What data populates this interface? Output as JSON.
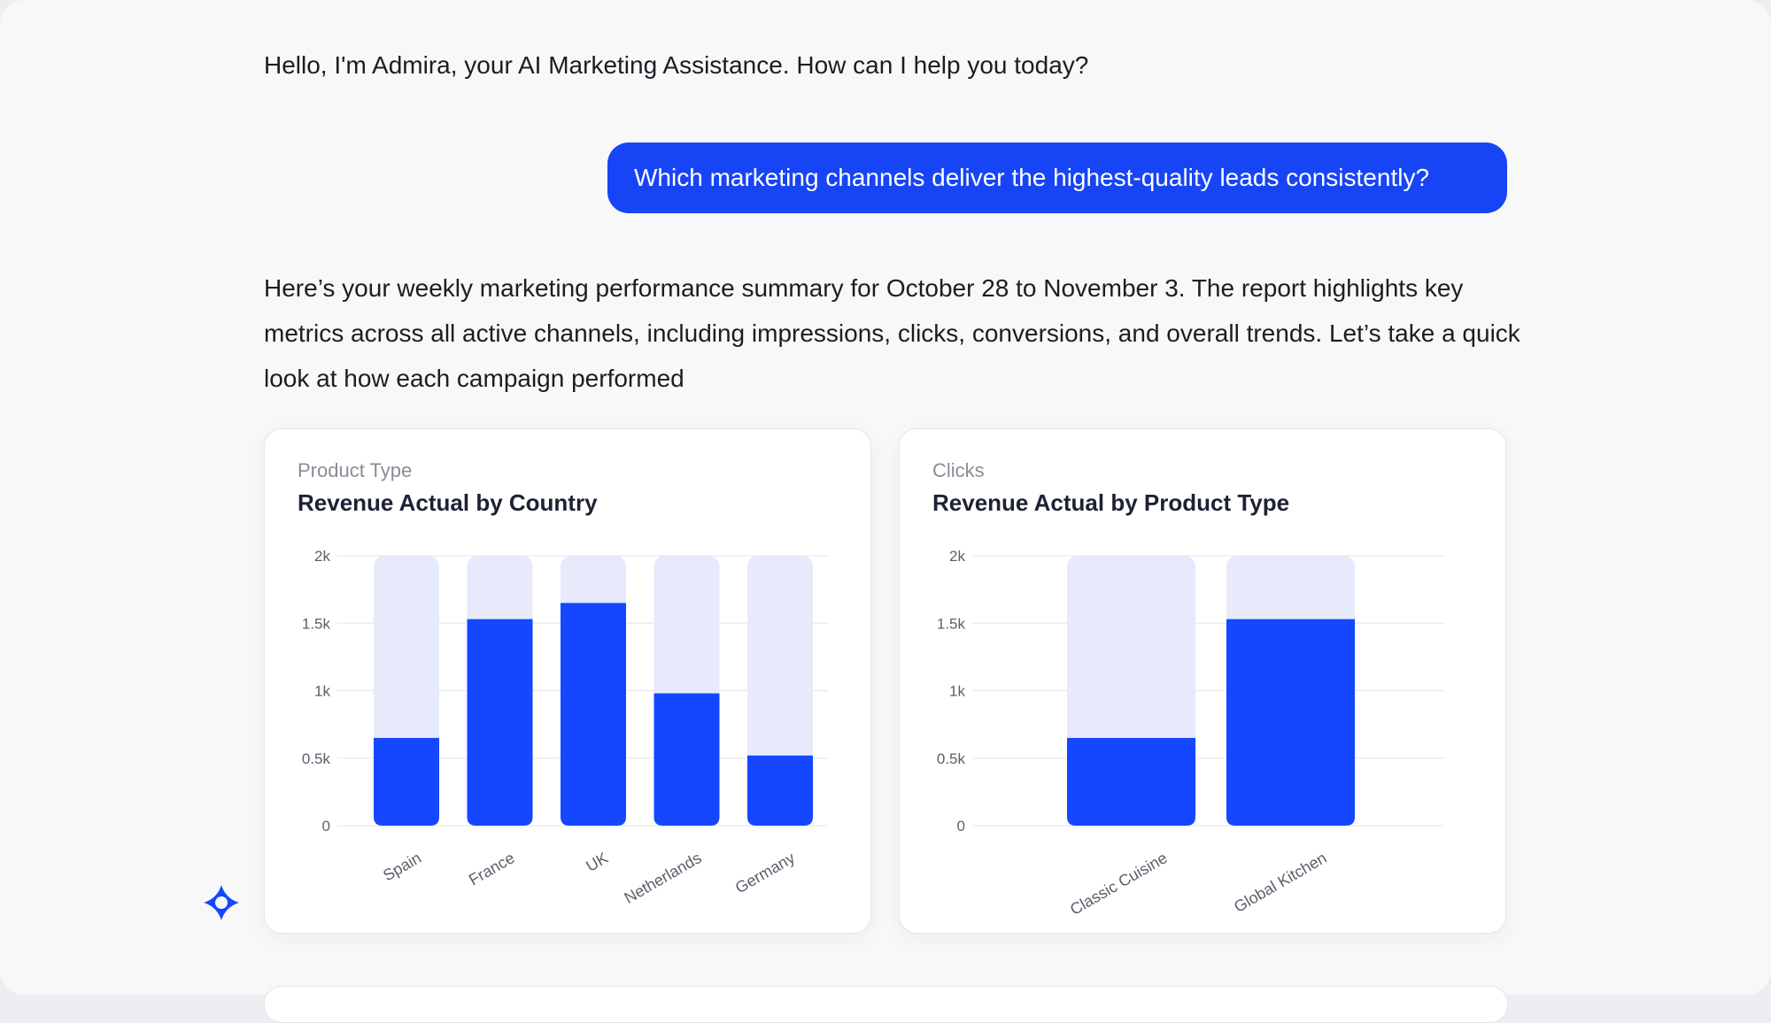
{
  "chat": {
    "greeting": "Hello, I'm Admira, your AI Marketing Assistance. How can I help you today?",
    "user_message": "Which marketing channels deliver the highest-quality leads consistently?",
    "assistant_reply": "Here’s your weekly marketing performance summary for October 28 to November 3. The report highlights key metrics across all active channels, including impressions, clicks, conversions, and overall trends. Let’s take a quick look at how each campaign performed"
  },
  "assistant_logo_icon": "sparkle-icon",
  "colors": {
    "bar_fill": "#1447ff",
    "bar_track": "#e6eafb",
    "user_bubble": "#1745f5"
  },
  "chart_data": [
    {
      "type": "bar",
      "subtitle": "Product Type",
      "title": "Revenue Actual by Country",
      "categories": [
        "Spain",
        "France",
        "UK",
        "Netherlands",
        "Germany"
      ],
      "values": [
        650,
        1530,
        1650,
        980,
        520
      ],
      "yticks": [
        "0",
        "0.5k",
        "1k",
        "1.5k",
        "2k"
      ],
      "ylim": [
        0,
        2000
      ],
      "grid": true
    },
    {
      "type": "bar",
      "subtitle": "Clicks",
      "title": "Revenue Actual by Product Type",
      "categories": [
        "Classic Cuisine",
        "Global Kitchen"
      ],
      "values": [
        650,
        1530
      ],
      "yticks": [
        "0",
        "0.5k",
        "1k",
        "1.5k",
        "2k"
      ],
      "ylim": [
        0,
        2000
      ],
      "grid": true
    }
  ]
}
